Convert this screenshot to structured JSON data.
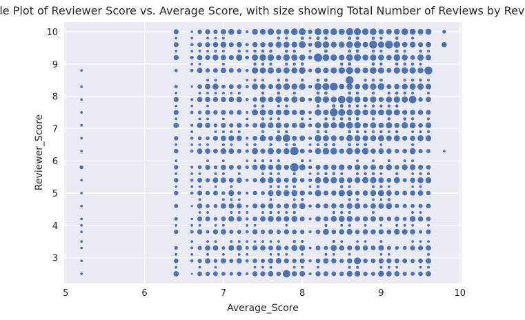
{
  "colors": {
    "plot_background": "#eaeaf2",
    "grid": "#ffffff",
    "marker": "#4c72b0",
    "text": "#262626"
  },
  "chart_data": {
    "type": "scatter",
    "title": "Bubble Plot of Reviewer Score vs. Average Score, with size showing Total Number of Reviews by Reviewer",
    "xlabel": "Average_Score",
    "ylabel": "Reviewer_Score",
    "xlim": [
      4.98,
      10.02
    ],
    "ylim": [
      2.2,
      10.3
    ],
    "xticks": [
      5,
      6,
      7,
      8,
      9,
      10
    ],
    "yticks": [
      3,
      4,
      5,
      6,
      7,
      8,
      9,
      10
    ],
    "grid": true,
    "legend": "none",
    "score_grid": {
      "average_scores": [
        6.4,
        6.6,
        6.7,
        6.8,
        6.9,
        7.0,
        7.1,
        7.2,
        7.3,
        7.4,
        7.5,
        7.6,
        7.7,
        7.8,
        7.9,
        8.0,
        8.1,
        8.2,
        8.3,
        8.4,
        8.5,
        8.6,
        8.7,
        8.8,
        8.9,
        9.0,
        9.1,
        9.2,
        9.3,
        9.4,
        9.5,
        9.6
      ],
      "reviewer_scores": [
        2.5,
        2.9,
        3.3,
        3.8,
        4.2,
        4.6,
        5.0,
        5.4,
        5.8,
        6.3,
        6.7,
        7.1,
        7.5,
        7.9,
        8.3,
        8.8,
        9.2,
        9.6,
        10.0
      ],
      "reviewer_scores_sparse": [
        2.5,
        2.9,
        3.3,
        3.8,
        4.2,
        4.6,
        5.0,
        5.4,
        5.8,
        6.3,
        6.7,
        7.1,
        7.5,
        7.9,
        8.3,
        8.8,
        9.2,
        9.6,
        10.0
      ],
      "extra_points": [
        {
          "x": 5.2,
          "y": 8.8,
          "size": 1
        },
        {
          "x": 5.2,
          "y": 8.3,
          "size": 1
        },
        {
          "x": 5.2,
          "y": 7.9,
          "size": 1
        },
        {
          "x": 5.2,
          "y": 7.5,
          "size": 1
        },
        {
          "x": 5.2,
          "y": 7.1,
          "size": 1
        },
        {
          "x": 5.2,
          "y": 6.7,
          "size": 1
        },
        {
          "x": 5.2,
          "y": 6.3,
          "size": 1
        },
        {
          "x": 5.2,
          "y": 5.8,
          "size": 2
        },
        {
          "x": 5.2,
          "y": 5.4,
          "size": 1
        },
        {
          "x": 5.2,
          "y": 5.0,
          "size": 1
        },
        {
          "x": 5.2,
          "y": 4.6,
          "size": 1
        },
        {
          "x": 5.2,
          "y": 4.2,
          "size": 1
        },
        {
          "x": 5.2,
          "y": 4.0,
          "size": 1
        },
        {
          "x": 5.2,
          "y": 3.8,
          "size": 1
        },
        {
          "x": 5.2,
          "y": 3.5,
          "size": 1
        },
        {
          "x": 5.2,
          "y": 3.3,
          "size": 1
        },
        {
          "x": 5.2,
          "y": 2.9,
          "size": 1
        },
        {
          "x": 5.2,
          "y": 2.5,
          "size": 1
        },
        {
          "x": 9.8,
          "y": 10.0,
          "size": 2
        },
        {
          "x": 9.8,
          "y": 9.6,
          "size": 4
        },
        {
          "x": 9.8,
          "y": 6.3,
          "size": 1
        }
      ],
      "large_points": [
        {
          "x": 8.2,
          "y": 9.2,
          "size": 10
        },
        {
          "x": 8.4,
          "y": 8.3,
          "size": 9
        },
        {
          "x": 8.6,
          "y": 8.5,
          "size": 9
        },
        {
          "x": 7.9,
          "y": 6.3,
          "size": 10
        },
        {
          "x": 7.9,
          "y": 5.8,
          "size": 10
        },
        {
          "x": 7.8,
          "y": 2.5,
          "size": 8
        },
        {
          "x": 8.7,
          "y": 2.9,
          "size": 7
        },
        {
          "x": 7.8,
          "y": 6.7,
          "size": 8
        },
        {
          "x": 9.6,
          "y": 8.8,
          "size": 9
        },
        {
          "x": 8.4,
          "y": 7.5,
          "size": 9
        },
        {
          "x": 9.4,
          "y": 7.9,
          "size": 8
        },
        {
          "x": 9.1,
          "y": 9.6,
          "size": 9
        },
        {
          "x": 8.9,
          "y": 9.6,
          "size": 9
        },
        {
          "x": 8.5,
          "y": 7.9,
          "size": 8
        }
      ]
    }
  }
}
